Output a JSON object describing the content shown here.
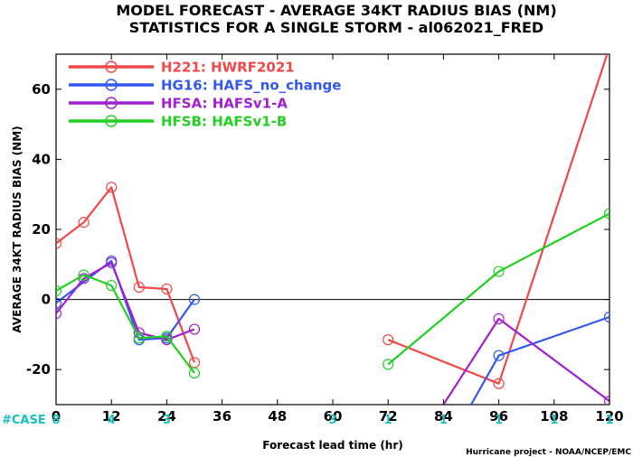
{
  "chart_data": {
    "type": "line",
    "title": "MODEL FORECAST - AVERAGE 34KT RADIUS BIAS (NM)",
    "subtitle": "STATISTICS FOR A SINGLE STORM - al062021_FRED",
    "xlabel": "Forecast lead time (hr)",
    "ylabel": "AVERAGE 34KT RADIUS BIAS (NM)",
    "xlim": [
      0,
      120
    ],
    "ylim": [
      -30,
      70
    ],
    "x_ticks": [
      "0",
      "12",
      "24",
      "36",
      "48",
      "60",
      "72",
      "84",
      "96",
      "108",
      "120"
    ],
    "y_ticks": [
      "-20",
      "0",
      "20",
      "40",
      "60"
    ],
    "series": [
      {
        "name": "H221: HWRF2021",
        "color": "#f04848",
        "segments": [
          [
            [
              0,
              16
            ],
            [
              6,
              22
            ],
            [
              12,
              32
            ],
            [
              18,
              3.5
            ],
            [
              24,
              3
            ],
            [
              30,
              -18
            ]
          ],
          [
            [
              72,
              -11.5
            ],
            [
              96,
              -24
            ],
            [
              120,
              72
            ]
          ]
        ]
      },
      {
        "name": "HG16: HAFS_no_change",
        "color": "#3358f0",
        "segments": [
          [
            [
              0,
              -1
            ],
            [
              12,
              11
            ],
            [
              18,
              -11.5
            ],
            [
              24,
              -11
            ],
            [
              30,
              0
            ]
          ],
          [
            [
              90,
              -30
            ],
            [
              96,
              -16
            ],
            [
              120,
              -5
            ]
          ]
        ]
      },
      {
        "name": "HFSA: HAFSv1-A",
        "color": "#a020d0",
        "segments": [
          [
            [
              0,
              -4
            ],
            [
              6,
              6
            ],
            [
              12,
              10.5
            ],
            [
              18,
              -9.5
            ],
            [
              24,
              -11.5
            ],
            [
              30,
              -8.5
            ]
          ],
          [
            [
              84,
              -30
            ],
            [
              96,
              -5.5
            ],
            [
              120,
              -29
            ]
          ]
        ]
      },
      {
        "name": "HFSB: HAFSv1-B",
        "color": "#22d022",
        "segments": [
          [
            [
              0,
              2.5
            ],
            [
              6,
              7
            ],
            [
              12,
              4
            ],
            [
              18,
              -11
            ],
            [
              24,
              -10.5
            ],
            [
              30,
              -21
            ]
          ],
          [
            [
              72,
              -18.5
            ],
            [
              96,
              8
            ],
            [
              120,
              24.5
            ]
          ]
        ]
      }
    ],
    "case_label": "#CASE",
    "case_color": "#18c0c0",
    "cases": [
      {
        "x": 0,
        "n": "8"
      },
      {
        "x": 12,
        "n": "4"
      },
      {
        "x": 24,
        "n": "3"
      },
      {
        "x": 60,
        "n": "3"
      },
      {
        "x": 72,
        "n": "1"
      },
      {
        "x": 84,
        "n": "1"
      },
      {
        "x": 96,
        "n": "1"
      },
      {
        "x": 108,
        "n": "1"
      },
      {
        "x": 120,
        "n": "1"
      }
    ],
    "legend": {
      "placement": "top-left",
      "entries": [
        {
          "id": "H221",
          "text": "H221: HWRF2021",
          "color": "#f04848"
        },
        {
          "id": "HG16",
          "text": "HG16: HAFS_no_change",
          "color": "#3358f0"
        },
        {
          "id": "HFSA",
          "text": "HFSA: HAFSv1-A",
          "color": "#a020d0"
        },
        {
          "id": "HFSB",
          "text": "HFSB: HAFSv1-B",
          "color": "#22d022"
        }
      ]
    },
    "zero_line": true,
    "grid": false,
    "credit": "Hurricane project - NOAA/NCEP/EMC"
  }
}
